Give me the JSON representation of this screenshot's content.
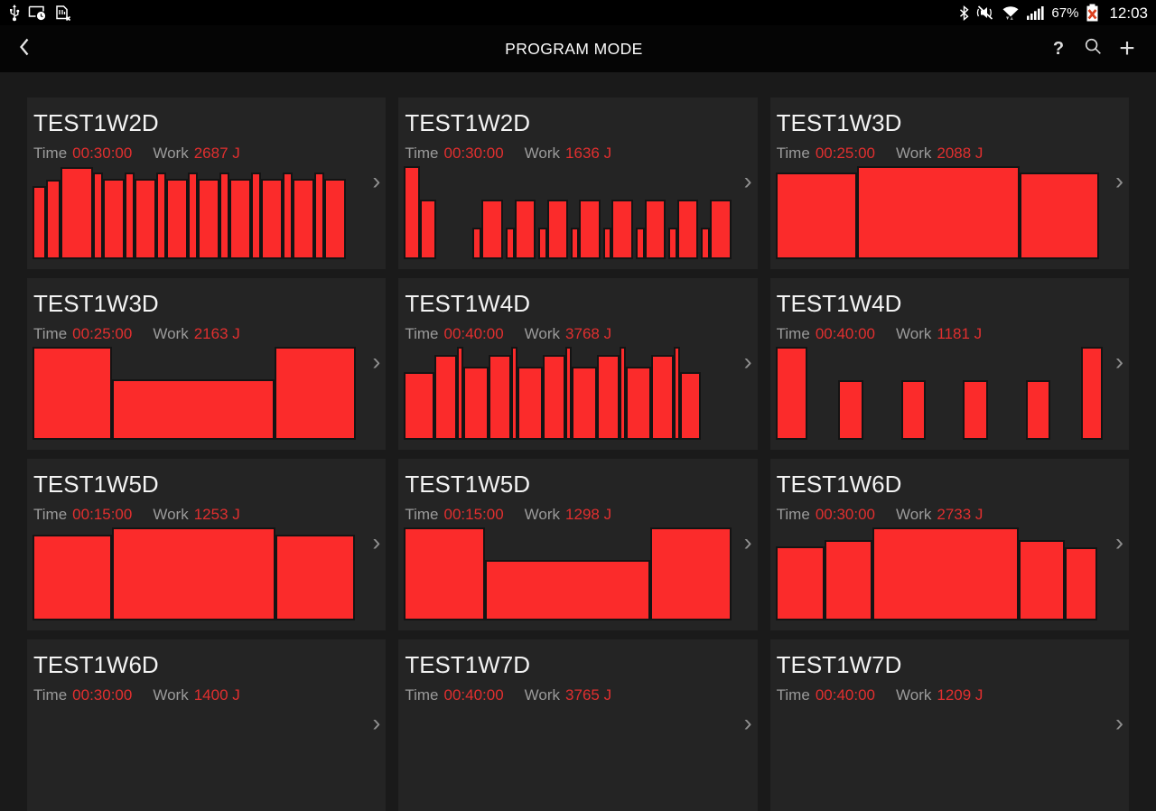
{
  "status_bar": {
    "time": "12:03",
    "battery_percent": "67%",
    "left_icons": [
      "usb-icon",
      "screen-cast-clock-icon",
      "sim-missing-icon"
    ],
    "right_icons": [
      "bluetooth-icon",
      "vibrate-mute-icon",
      "wifi-icon",
      "signal-strength-icon",
      "battery-error-icon"
    ]
  },
  "header": {
    "title": "PROGRAM MODE",
    "help_label": "?",
    "add_label": "+"
  },
  "labels": {
    "time": "Time",
    "work": "Work"
  },
  "icons": {
    "chevron": "›"
  },
  "colors": {
    "accent_red": "#fb2b2b",
    "value_red": "#e12f2f",
    "page_bg": "#1a1a1a",
    "card_bg": "#242424"
  },
  "cards": [
    {
      "title": "TEST1W2D",
      "time": "00:30:00",
      "work": "2687 J",
      "bars": [
        [
          15,
          0.79
        ],
        [
          16,
          0.85
        ],
        [
          36,
          0.99
        ],
        [
          11,
          0.93
        ],
        [
          24,
          0.86
        ],
        [
          11,
          0.93
        ],
        [
          24,
          0.86
        ],
        [
          11,
          0.93
        ],
        [
          24,
          0.86
        ],
        [
          11,
          0.93
        ],
        [
          24,
          0.86
        ],
        [
          11,
          0.93
        ],
        [
          24,
          0.86
        ],
        [
          11,
          0.93
        ],
        [
          24,
          0.86
        ],
        [
          11,
          0.93
        ],
        [
          24,
          0.86
        ],
        [
          11,
          0.93
        ],
        [
          24,
          0.86
        ]
      ]
    },
    {
      "title": "TEST1W2D",
      "time": "00:30:00",
      "work": "1636 J",
      "bars": [
        [
          18,
          1.0
        ],
        [
          18,
          0.64
        ],
        [
          11,
          0.34,
          40
        ],
        [
          24,
          0.64
        ],
        [
          10,
          0.34,
          3
        ],
        [
          24,
          0.64
        ],
        [
          10,
          0.34,
          3
        ],
        [
          24,
          0.64
        ],
        [
          9,
          0.34,
          3
        ],
        [
          24,
          0.64
        ],
        [
          10,
          0.34,
          3
        ],
        [
          24,
          0.64
        ],
        [
          10,
          0.34,
          3
        ],
        [
          24,
          0.64
        ],
        [
          10,
          0.34,
          3
        ],
        [
          24,
          0.64
        ],
        [
          10,
          0.34,
          3
        ],
        [
          24,
          0.64
        ]
      ]
    },
    {
      "title": "TEST1W3D",
      "time": "00:25:00",
      "work": "2088 J",
      "bars": [
        [
          90,
          0.93
        ],
        [
          180,
          1.0
        ],
        [
          88,
          0.93
        ]
      ]
    },
    {
      "title": "TEST1W3D",
      "time": "00:25:00",
      "work": "2163 J",
      "bars": [
        [
          88,
          1.0
        ],
        [
          180,
          0.65
        ],
        [
          90,
          1.0
        ]
      ]
    },
    {
      "title": "TEST1W4D",
      "time": "00:40:00",
      "work": "3768 J",
      "bars": [
        [
          34,
          0.73
        ],
        [
          25,
          0.91
        ],
        [
          7,
          1.0
        ],
        [
          28,
          0.79
        ],
        [
          25,
          0.91
        ],
        [
          7,
          1.0
        ],
        [
          28,
          0.79
        ],
        [
          25,
          0.91
        ],
        [
          7,
          1.0
        ],
        [
          28,
          0.79
        ],
        [
          25,
          0.91
        ],
        [
          7,
          1.0
        ],
        [
          28,
          0.79
        ],
        [
          25,
          0.91
        ],
        [
          7,
          1.0
        ],
        [
          23,
          0.73
        ]
      ]
    },
    {
      "title": "TEST1W4D",
      "time": "00:40:00",
      "work": "1181 J",
      "bars": [
        [
          36,
          1.0
        ],
        [
          28,
          0.64,
          34
        ],
        [
          28,
          0.64,
          42
        ],
        [
          28,
          0.64,
          41
        ],
        [
          28,
          0.64,
          42
        ],
        [
          24,
          1.0,
          34
        ]
      ]
    },
    {
      "title": "TEST1W5D",
      "time": "00:15:00",
      "work": "1253 J",
      "bars": [
        [
          88,
          0.92
        ],
        [
          181,
          1.0
        ],
        [
          88,
          0.92
        ]
      ]
    },
    {
      "title": "TEST1W5D",
      "time": "00:15:00",
      "work": "1298 J",
      "bars": [
        [
          94,
          1.0
        ],
        [
          190,
          0.65
        ],
        [
          94,
          1.0
        ]
      ]
    },
    {
      "title": "TEST1W6D",
      "time": "00:30:00",
      "work": "2733 J",
      "bars": [
        [
          54,
          0.8
        ],
        [
          53,
          0.86
        ],
        [
          162,
          1.0
        ],
        [
          51,
          0.86
        ],
        [
          36,
          0.79
        ]
      ]
    },
    {
      "title": "TEST1W6D",
      "time": "00:30:00",
      "work": "1400 J",
      "bars": []
    },
    {
      "title": "TEST1W7D",
      "time": "00:40:00",
      "work": "3765 J",
      "bars": []
    },
    {
      "title": "TEST1W7D",
      "time": "00:40:00",
      "work": "1209 J",
      "bars": []
    }
  ]
}
